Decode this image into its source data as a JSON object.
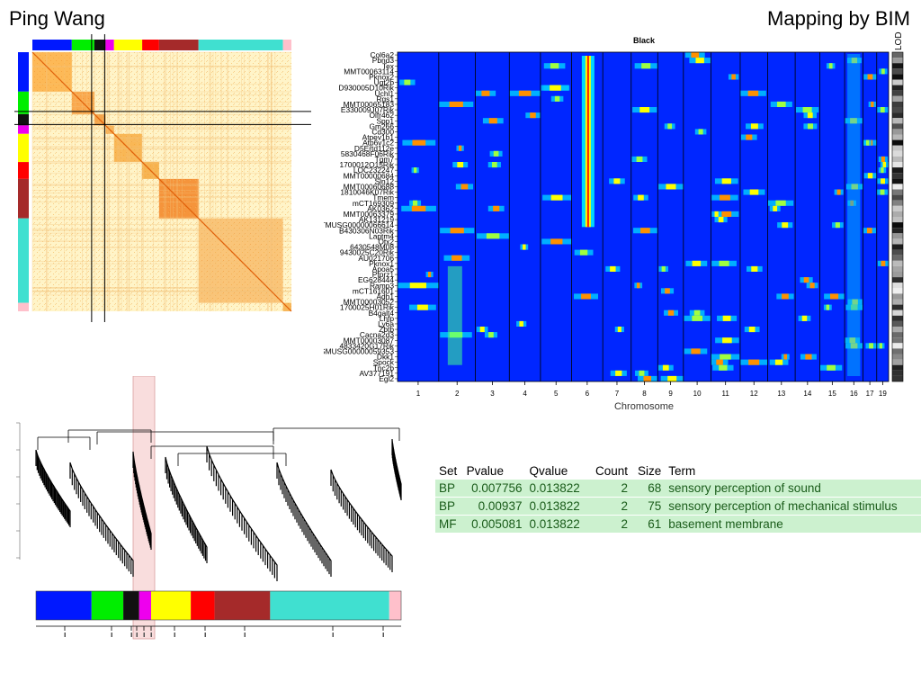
{
  "slide": {
    "author": "Ping Wang",
    "method": "Mapping by BIM"
  },
  "module_colors": [
    "#0018ff",
    "#00ee00",
    "#111111",
    "#ee00ee",
    "#ffff00",
    "#ff0000",
    "#a52a2a",
    "#40e0d0",
    "#ffc0cb"
  ],
  "module_weights": [
    14,
    8,
    4,
    3,
    10,
    6,
    14,
    30,
    3
  ],
  "heatmap": {
    "title": "Black",
    "xlabel": "Chromosome",
    "lod_label": "LOD",
    "chromosomes": [
      "1",
      "2",
      "3",
      "4",
      "5",
      "6",
      "7",
      "8",
      "9",
      "10",
      "11",
      "12",
      "13",
      "14",
      "15",
      "16",
      "17",
      "19"
    ],
    "chrom_widths": [
      45,
      40,
      37,
      34,
      34,
      34,
      31,
      29,
      28,
      30,
      32,
      30,
      30,
      27,
      27,
      20,
      15,
      13
    ],
    "genes": [
      "Col6a2",
      "Pbnd3",
      "Tex",
      "MMT00063114",
      "Pknox2",
      "Ugt2b",
      "D930005D10Rik",
      "Uchl1",
      "Rgs1",
      "MMT00065183",
      "E330009J07Rik",
      "Olfr462",
      "Spp1",
      "Gm266",
      "Cd300",
      "Atpev1b1",
      "Atp6v1c2",
      "D5Ertd112e",
      "5830468F06Rik",
      "Tgm7",
      "1700012O15Rik",
      "LOC232247",
      "MMT00000684",
      "Sln12",
      "MMT00060688",
      "1810046K07Rik",
      "Tmem",
      "mCT169309",
      "AK0362",
      "MMT00063379",
      "AK131219",
      "TMUSG00000066614",
      "B430306N03Rik",
      "Laptm4",
      "Otx2",
      "6430548M08",
      "9430025C20Rik",
      "AU021706",
      "Pknox1",
      "Apoa5",
      "Ptprz1",
      "EG628444",
      "Ramp3",
      "mCT161601",
      "Adh1",
      "MMT00003052",
      "1700025H01Rik",
      "B4galt4",
      "Lhfp",
      "Ly6a",
      "Zbtb",
      "Cacna2d3",
      "MMT00003087",
      "4833420G17Rik",
      "SMUSG00000059353",
      "Dkk1",
      "Spock",
      "Tnc2b",
      "AV377191",
      "Egl2"
    ]
  },
  "chart_data": {
    "type": "table",
    "columns": [
      "Set",
      "Pvalue",
      "Qvalue",
      "Count",
      "Size",
      "Term"
    ],
    "rows": [
      [
        "BP",
        "0.007756",
        "0.013822",
        "2",
        "68",
        "sensory perception of sound"
      ],
      [
        "BP",
        "0.00937",
        "0.013822",
        "2",
        "75",
        "sensory perception of mechanical stimulus"
      ],
      [
        "MF",
        "0.005081",
        "0.013822",
        "2",
        "61",
        "basement membrane"
      ]
    ]
  }
}
